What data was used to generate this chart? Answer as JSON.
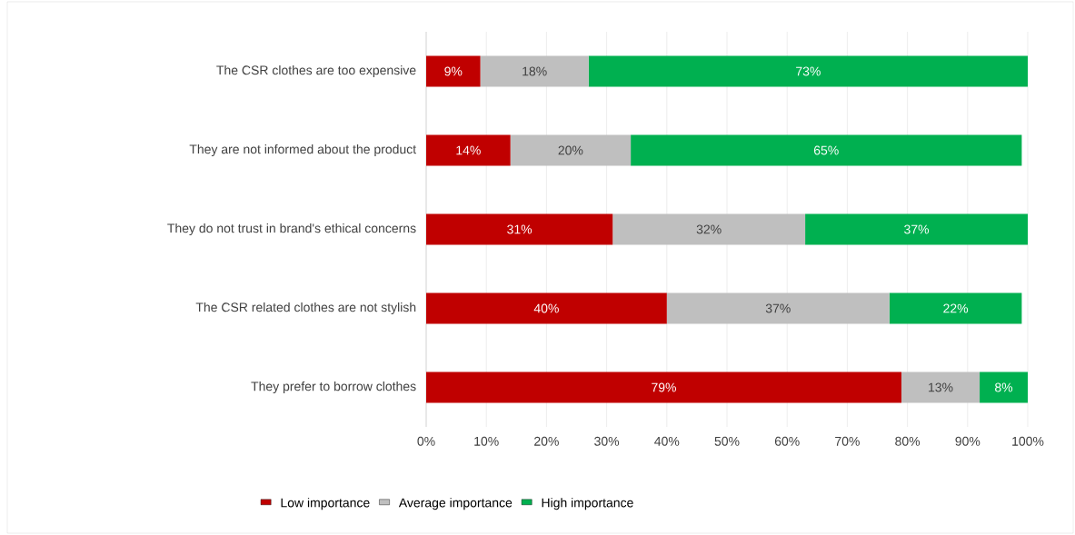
{
  "chart_data": {
    "type": "bar",
    "orientation": "horizontal",
    "stacked": true,
    "categories": [
      "The CSR clothes are too expensive",
      "They are not informed about the product",
      "They do not trust in brand's ethical concerns",
      "The CSR related clothes are not stylish",
      "They prefer to borrow clothes"
    ],
    "series": [
      {
        "name": "Low importance",
        "color": "#c00000",
        "values": [
          9,
          14,
          31,
          40,
          79
        ],
        "value_labels": [
          "9%",
          "14%",
          "31%",
          "40%",
          "79%"
        ]
      },
      {
        "name": "Average importance",
        "color": "#bfbfbf",
        "values": [
          18,
          20,
          32,
          37,
          13
        ],
        "value_labels": [
          "18%",
          "20%",
          "32%",
          "37%",
          "13%"
        ]
      },
      {
        "name": "High importance",
        "color": "#00b050",
        "values": [
          73,
          65,
          37,
          22,
          8
        ],
        "value_labels": [
          "73%",
          "65%",
          "37%",
          "22%",
          "8%"
        ]
      }
    ],
    "xlim": [
      0,
      100
    ],
    "xticks": [
      {
        "value": 0,
        "label": "0%"
      },
      {
        "value": 10,
        "label": "10%"
      },
      {
        "value": 20,
        "label": "20%"
      },
      {
        "value": 30,
        "label": "30%"
      },
      {
        "value": 40,
        "label": "40%"
      },
      {
        "value": 50,
        "label": "50%"
      },
      {
        "value": 60,
        "label": "60%"
      },
      {
        "value": 70,
        "label": "70%"
      },
      {
        "value": 80,
        "label": "80%"
      },
      {
        "value": 90,
        "label": "90%"
      },
      {
        "value": 100,
        "label": "100%"
      }
    ],
    "grid": "x",
    "legend": "bottom"
  }
}
